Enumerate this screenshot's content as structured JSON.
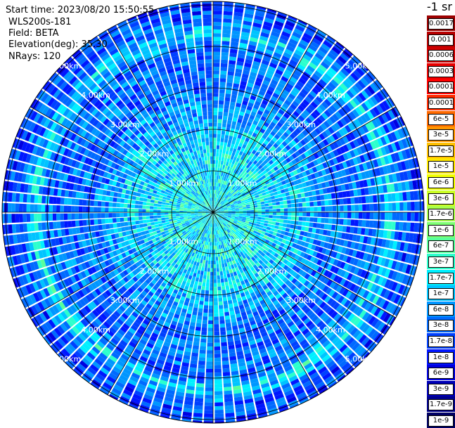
{
  "meta": {
    "start_time": "Start time: 2023/08/20 15:50:55",
    "instrument": "WLS200s-181",
    "field": "Field: BETA",
    "elevation": "Elevation(deg): 35.30",
    "nrays": "NRays: 120"
  },
  "colors": {
    "grid": "#000000",
    "range_label": "#ffffff",
    "background": "#ffffff"
  },
  "colorbar": {
    "unit": "-1 sr",
    "labels": [
      "0.0017",
      "0.001",
      "0.0006",
      "0.0003",
      "0.00017",
      "0.0001",
      "6e-5",
      "3e-5",
      "1.7e-5",
      "1e-5",
      "6e-6",
      "3e-6",
      "1.7e-6",
      "1e-6",
      "6e-7",
      "3e-7",
      "1.7e-7",
      "1e-7",
      "6e-8",
      "3e-8",
      "1.7e-8",
      "1e-8",
      "6e-9",
      "3e-9",
      "1.7e-9",
      "1e-9"
    ],
    "colors": [
      "#9c0000",
      "#b80000",
      "#d00000",
      "#e80000",
      "#ff0000",
      "#ff2a00",
      "#ff6a00",
      "#ff9600",
      "#ffc000",
      "#ffe800",
      "#f2ff00",
      "#ccff24",
      "#a8ff4c",
      "#7fff74",
      "#58ff9c",
      "#2cffcc",
      "#00f0ff",
      "#00c4ff",
      "#0096ff",
      "#006aff",
      "#0040ff",
      "#0016ff",
      "#0000e0",
      "#0000b8",
      "#00008c",
      "#000064"
    ]
  },
  "chart_data": {
    "type": "ppi_polar",
    "title": "",
    "field": "BETA",
    "units": "-1 sr",
    "elevation_deg": 35.3,
    "n_rays": 120,
    "range_rings_km": [
      1,
      2,
      3,
      4,
      5
    ],
    "range_labels": [
      "1.00km",
      "2.00km",
      "3.00km",
      "4.00km",
      "5.00km"
    ],
    "max_range_km": 5.0,
    "spoke_directions_deg": [
      0,
      30,
      60,
      90,
      120,
      150,
      180,
      210,
      240,
      270,
      300,
      330
    ],
    "radial_profile": [
      {
        "range_km": 0.0,
        "beta": 1.7e-07
      },
      {
        "range_km": 1.0,
        "beta": 1.7e-07
      },
      {
        "range_km": 2.0,
        "beta": 1e-07
      },
      {
        "range_km": 3.0,
        "beta": 3e-08
      },
      {
        "range_km": 4.0,
        "beta": 3e-08
      },
      {
        "range_km": 4.3,
        "beta": 1.7e-07
      },
      {
        "range_km": 4.6,
        "beta": 3e-08
      },
      {
        "range_km": 5.0,
        "beta": 1.7e-08
      }
    ]
  }
}
